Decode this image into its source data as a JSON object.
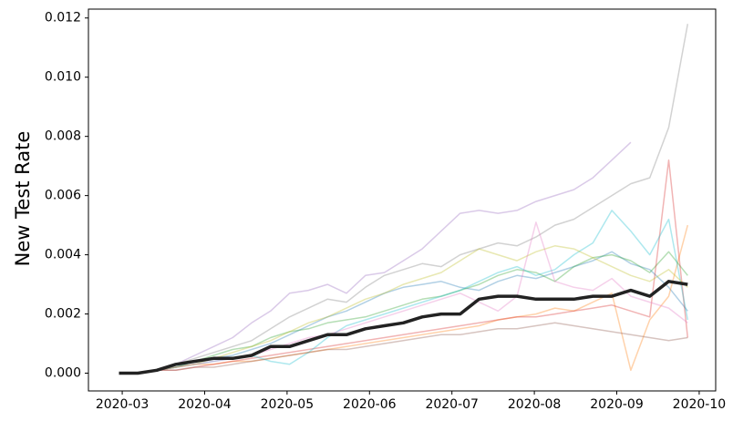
{
  "chart_data": {
    "type": "line",
    "ylabel": "New Test Rate",
    "x": [
      2.96,
      3.19,
      3.42,
      3.65,
      3.88,
      4.11,
      4.34,
      4.57,
      4.8,
      5.03,
      5.26,
      5.49,
      5.72,
      5.95,
      6.18,
      6.41,
      6.64,
      6.87,
      7.1,
      7.33,
      7.56,
      7.79,
      8.02,
      8.25,
      8.48,
      8.71,
      8.94,
      9.17,
      9.4,
      9.63,
      9.86
    ],
    "xlim": [
      2.59,
      10.2
    ],
    "xticks": [
      {
        "value": 3,
        "label": "2020-03"
      },
      {
        "value": 4,
        "label": "2020-04"
      },
      {
        "value": 5,
        "label": "2020-05"
      },
      {
        "value": 6,
        "label": "2020-06"
      },
      {
        "value": 7,
        "label": "2020-07"
      },
      {
        "value": 8,
        "label": "2020-08"
      },
      {
        "value": 9,
        "label": "2020-09"
      },
      {
        "value": 10,
        "label": "2020-10"
      }
    ],
    "ylim": [
      -0.0006,
      0.0123
    ],
    "yticks": [
      {
        "value": 0,
        "label": "0.000"
      },
      {
        "value": 0.002,
        "label": "0.002"
      },
      {
        "value": 0.004,
        "label": "0.004"
      },
      {
        "value": 0.006,
        "label": "0.006"
      },
      {
        "value": 0.008,
        "label": "0.008"
      },
      {
        "value": 0.01,
        "label": "0.010"
      },
      {
        "value": 0.012,
        "label": "0.012"
      }
    ],
    "grid": false,
    "series": [
      {
        "color": "#9467bd",
        "alpha": 0.35,
        "linewidth": 1.5,
        "values": [
          0,
          0,
          0.0001,
          0.0003,
          0.0006,
          0.0009,
          0.0012,
          0.0017,
          0.0021,
          0.0027,
          0.0028,
          0.003,
          0.0027,
          0.0033,
          0.0034,
          0.0038,
          0.0042,
          0.0048,
          0.0054,
          0.0055,
          0.0054,
          0.0055,
          0.0058,
          0.006,
          0.0062,
          0.0066,
          0.0072,
          0.0078,
          null,
          null,
          null
        ]
      },
      {
        "color": "#7f7f7f",
        "alpha": 0.35,
        "linewidth": 1.5,
        "values": [
          0,
          0,
          0.0001,
          0.0003,
          0.0005,
          0.0007,
          0.0009,
          0.0011,
          0.0015,
          0.0019,
          0.0022,
          0.0025,
          0.0024,
          0.0029,
          0.0033,
          0.0035,
          0.0037,
          0.0036,
          0.004,
          0.0042,
          0.0044,
          0.0043,
          0.0046,
          0.005,
          0.0052,
          0.0056,
          0.006,
          0.0064,
          0.0066,
          0.0083,
          0.0118
        ]
      },
      {
        "color": "#1f77b4",
        "alpha": 0.35,
        "linewidth": 1.5,
        "values": [
          0,
          0,
          0.0001,
          0.0002,
          0.0004,
          0.0005,
          0.0006,
          0.0008,
          0.001,
          0.0013,
          0.0016,
          0.0019,
          0.0021,
          0.0024,
          0.0027,
          0.0029,
          0.003,
          0.0031,
          0.0029,
          0.0028,
          0.0031,
          0.0033,
          0.0032,
          0.0034,
          0.0036,
          0.0038,
          0.0041,
          0.0037,
          0.0035,
          0.0029,
          0.0021
        ]
      },
      {
        "color": "#ff7f0e",
        "alpha": 0.35,
        "linewidth": 1.5,
        "values": [
          0,
          0,
          0.0001,
          0.0002,
          0.0003,
          0.0003,
          0.0004,
          0.0004,
          0.0005,
          0.0006,
          0.0007,
          0.0008,
          0.0009,
          0.001,
          0.0011,
          0.0012,
          0.0013,
          0.0014,
          0.0015,
          0.0016,
          0.0018,
          0.0019,
          0.002,
          0.0022,
          0.0021,
          0.0024,
          0.0027,
          0.0001,
          0.0018,
          0.0026,
          0.005
        ]
      },
      {
        "color": "#2ca02c",
        "alpha": 0.35,
        "linewidth": 1.5,
        "values": [
          0,
          0,
          0.0001,
          0.0002,
          0.0004,
          0.0006,
          0.0008,
          0.0009,
          0.0012,
          0.0014,
          0.0015,
          0.0017,
          0.0018,
          0.0019,
          0.0021,
          0.0023,
          0.0025,
          0.0026,
          0.0028,
          0.003,
          0.0033,
          0.0035,
          0.0034,
          0.0031,
          0.0036,
          0.0039,
          0.004,
          0.0038,
          0.0034,
          0.0041,
          0.0033
        ]
      },
      {
        "color": "#d62728",
        "alpha": 0.35,
        "linewidth": 1.5,
        "values": [
          0,
          0,
          0.0001,
          0.0001,
          0.0002,
          0.0003,
          0.0004,
          0.0005,
          0.0006,
          0.0007,
          0.0008,
          0.0009,
          0.001,
          0.0011,
          0.0012,
          0.0013,
          0.0014,
          0.0015,
          0.0016,
          0.0017,
          0.0018,
          0.0019,
          0.0019,
          0.002,
          0.0021,
          0.0022,
          0.0023,
          0.0021,
          0.0019,
          0.0072,
          0.0012
        ]
      },
      {
        "color": "#17becf",
        "alpha": 0.35,
        "linewidth": 1.5,
        "values": [
          0,
          0,
          0.0001,
          0.0002,
          0.0003,
          0.0004,
          0.0005,
          0.0006,
          0.0004,
          0.0003,
          0.0007,
          0.0012,
          0.0016,
          0.0018,
          0.002,
          0.0022,
          0.0024,
          0.0026,
          0.0028,
          0.0031,
          0.0034,
          0.0036,
          0.0033,
          0.0035,
          0.004,
          0.0044,
          0.0055,
          0.0048,
          0.004,
          0.0052,
          0.0018
        ]
      },
      {
        "color": "#bcbd22",
        "alpha": 0.35,
        "linewidth": 1.5,
        "values": [
          0,
          0,
          0.0001,
          0.0002,
          0.0003,
          0.0005,
          0.0007,
          0.0009,
          0.0011,
          0.0014,
          0.0017,
          0.0019,
          0.0022,
          0.0025,
          0.0027,
          0.003,
          0.0032,
          0.0034,
          0.0038,
          0.0042,
          0.004,
          0.0038,
          0.0041,
          0.0043,
          0.0042,
          0.0039,
          0.0036,
          0.0033,
          0.0031,
          0.0035,
          0.0029
        ]
      },
      {
        "color": "#e377c2",
        "alpha": 0.35,
        "linewidth": 1.5,
        "values": [
          0,
          0,
          0.0001,
          0.0002,
          0.0003,
          0.0004,
          0.0005,
          0.0006,
          0.0008,
          0.001,
          0.0012,
          0.0013,
          0.0015,
          0.0017,
          0.0019,
          0.0021,
          0.0023,
          0.0025,
          0.0027,
          0.0024,
          0.0021,
          0.0026,
          0.0051,
          0.0031,
          0.0029,
          0.0028,
          0.0032,
          0.0026,
          0.0024,
          0.0022,
          0.0017
        ]
      },
      {
        "color": "#8c564b",
        "alpha": 0.35,
        "linewidth": 1.5,
        "values": [
          0,
          0,
          0.0001,
          0.0001,
          0.0002,
          0.0002,
          0.0003,
          0.0004,
          0.0005,
          0.0006,
          0.0007,
          0.0008,
          0.0008,
          0.0009,
          0.001,
          0.0011,
          0.0012,
          0.0013,
          0.0013,
          0.0014,
          0.0015,
          0.0015,
          0.0016,
          0.0017,
          0.0016,
          0.0015,
          0.0014,
          0.0013,
          0.0012,
          0.0011,
          0.0012
        ]
      },
      {
        "color": "#222222",
        "alpha": 1,
        "linewidth": 3.5,
        "values": [
          0,
          0,
          0.0001,
          0.0003,
          0.0004,
          0.0005,
          0.0005,
          0.0006,
          0.0009,
          0.0009,
          0.0011,
          0.0013,
          0.0013,
          0.0015,
          0.0016,
          0.0017,
          0.0019,
          0.002,
          0.002,
          0.0025,
          0.0026,
          0.0026,
          0.0025,
          0.0025,
          0.0025,
          0.0026,
          0.0026,
          0.0028,
          0.0026,
          0.0031,
          0.003
        ]
      }
    ]
  }
}
